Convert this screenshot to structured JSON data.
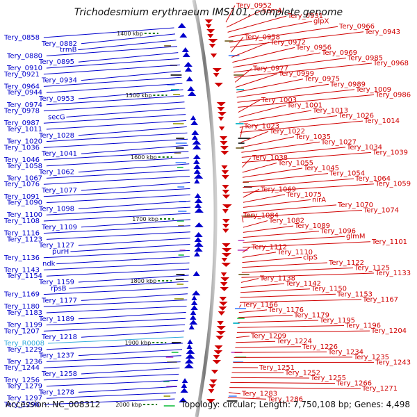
{
  "title": "Trichodesmium erythraeum IMS101, complete genome",
  "accession": "Accession: NC_008312",
  "topology": "Topology: circular; Length: 7,750,108 bp; Genes: 4,498",
  "colors": {
    "forward": "#d00000",
    "reverse": "#0000cc",
    "rna": "#33aadd",
    "backbone": "#888888",
    "tick": "#117711"
  },
  "scale_labels": [
    {
      "text": "1400 kbp",
      "kbp": 1400
    },
    {
      "text": "1500 kbp",
      "kbp": 1500
    },
    {
      "text": "1600 kbp",
      "kbp": 1600
    },
    {
      "text": "1700 kbp",
      "kbp": 1700
    },
    {
      "text": "1800 kbp",
      "kbp": 1800
    },
    {
      "text": "1900 kbp",
      "kbp": 1900
    },
    {
      "text": "2000 kbp",
      "kbp": 2000
    }
  ],
  "left_labels": [
    {
      "text": "Tery_0858"
    },
    {
      "text": "Tery_0882"
    },
    {
      "text": "trmB"
    },
    {
      "text": "Tery_0880"
    },
    {
      "text": "Tery_0895"
    },
    {
      "text": "Tery_0910"
    },
    {
      "text": "Tery_0921"
    },
    {
      "text": "Tery_0934"
    },
    {
      "text": "Tery_0964"
    },
    {
      "text": "Tery_0944"
    },
    {
      "text": "Tery_0953"
    },
    {
      "text": "Tery_0974"
    },
    {
      "text": "Tery_0978"
    },
    {
      "text": "secG"
    },
    {
      "text": "Tery_0987"
    },
    {
      "text": "Tery_1011"
    },
    {
      "text": "Tery_1028"
    },
    {
      "text": "Tery_1020"
    },
    {
      "text": "Tery_1036"
    },
    {
      "text": "Tery_1041"
    },
    {
      "text": "Tery_1046"
    },
    {
      "text": "Tery_1058"
    },
    {
      "text": "Tery_1062"
    },
    {
      "text": "Tery_1067"
    },
    {
      "text": "Tery_1076"
    },
    {
      "text": "Tery_1077"
    },
    {
      "text": "Tery_1091"
    },
    {
      "text": "Tery_1090"
    },
    {
      "text": "Tery_1098"
    },
    {
      "text": "Tery_1100"
    },
    {
      "text": "Tery_1108"
    },
    {
      "text": "Tery_1109"
    },
    {
      "text": "Tery_1116"
    },
    {
      "text": "Tery_1123"
    },
    {
      "text": "Tery_1127"
    },
    {
      "text": "purH"
    },
    {
      "text": "Tery_1136"
    },
    {
      "text": "ndk"
    },
    {
      "text": "Tery_1143"
    },
    {
      "text": "Tery_1154"
    },
    {
      "text": "Tery_1159"
    },
    {
      "text": "rpsB"
    },
    {
      "text": "Tery_1169"
    },
    {
      "text": "Tery_1177"
    },
    {
      "text": "Tery_1180"
    },
    {
      "text": "Tery_1183"
    },
    {
      "text": "Tery_1189"
    },
    {
      "text": "Tery_1199"
    },
    {
      "text": "Tery_1207"
    },
    {
      "text": "Tery_1218"
    },
    {
      "text": "Tery_R0008"
    },
    {
      "text": "Tery_1229"
    },
    {
      "text": "Tery_1237"
    },
    {
      "text": "Tery_1236"
    },
    {
      "text": "Tery_1244"
    },
    {
      "text": "Tery_1258"
    },
    {
      "text": "Tery_1256"
    },
    {
      "text": "Tery_1279"
    },
    {
      "text": "Tery_1278"
    },
    {
      "text": "Tery_1297"
    },
    {
      "text": "Tery_1296"
    }
  ],
  "right_labels": [
    {
      "text": "Tery_0952"
    },
    {
      "text": "hemA"
    },
    {
      "text": "Tery_0931"
    },
    {
      "text": "glpX"
    },
    {
      "text": "Tery_0966"
    },
    {
      "text": "Tery_0943"
    },
    {
      "text": "Tery_0958"
    },
    {
      "text": "Tery_0972"
    },
    {
      "text": "Tery_0956"
    },
    {
      "text": "Tery_0969"
    },
    {
      "text": "Tery_0985"
    },
    {
      "text": "Tery_0968"
    },
    {
      "text": "Tery_0977"
    },
    {
      "text": "Tery_0999"
    },
    {
      "text": "Tery_0975"
    },
    {
      "text": "Tery_0989"
    },
    {
      "text": "Tery_1009"
    },
    {
      "text": "Tery_0986"
    },
    {
      "text": "Tery_1003"
    },
    {
      "text": "Tery_1001"
    },
    {
      "text": "Tery_1013"
    },
    {
      "text": "Tery_1026"
    },
    {
      "text": "Tery_1014"
    },
    {
      "text": "Tery_1023"
    },
    {
      "text": "Tery_1022"
    },
    {
      "text": "Tery_1035"
    },
    {
      "text": "Tery_1027"
    },
    {
      "text": "Tery_1034"
    },
    {
      "text": "Tery_1039"
    },
    {
      "text": "Tery_1038"
    },
    {
      "text": "Tery_1055"
    },
    {
      "text": "Tery_1045"
    },
    {
      "text": "Tery_1054"
    },
    {
      "text": "Tery_1064"
    },
    {
      "text": "Tery_1059"
    },
    {
      "text": "Tery_1069"
    },
    {
      "text": "Tery_1075"
    },
    {
      "text": "nirA"
    },
    {
      "text": "Tery_1070"
    },
    {
      "text": "Tery_1074"
    },
    {
      "text": "Tery_1084"
    },
    {
      "text": "Tery_1082"
    },
    {
      "text": "Tery_1089"
    },
    {
      "text": "Tery_1096"
    },
    {
      "text": "glmM"
    },
    {
      "text": "Tery_1101"
    },
    {
      "text": "Tery_1112"
    },
    {
      "text": "Tery_1110"
    },
    {
      "text": "clpS"
    },
    {
      "text": "Tery_1122"
    },
    {
      "text": "Tery_1125"
    },
    {
      "text": "Tery_1133"
    },
    {
      "text": "Tery_1138"
    },
    {
      "text": "Tery_1142"
    },
    {
      "text": "Tery_1150"
    },
    {
      "text": "Tery_1153"
    },
    {
      "text": "Tery_1167"
    },
    {
      "text": "Tery_1166"
    },
    {
      "text": "Tery_1176"
    },
    {
      "text": "Tery_1179"
    },
    {
      "text": "Tery_1195"
    },
    {
      "text": "Tery_1196"
    },
    {
      "text": "Tery_1204"
    },
    {
      "text": "Tery_1209"
    },
    {
      "text": "Tery_1224"
    },
    {
      "text": "Tery_1226"
    },
    {
      "text": "Tery_1234"
    },
    {
      "text": "Tery_1235"
    },
    {
      "text": "Tery_1243"
    },
    {
      "text": "Tery_1251"
    },
    {
      "text": "Tery_1252"
    },
    {
      "text": "Tery_1255"
    },
    {
      "text": "Tery_1266"
    },
    {
      "text": "Tery_1271"
    },
    {
      "text": "Tery_1283"
    },
    {
      "text": "Tery_1286"
    }
  ]
}
